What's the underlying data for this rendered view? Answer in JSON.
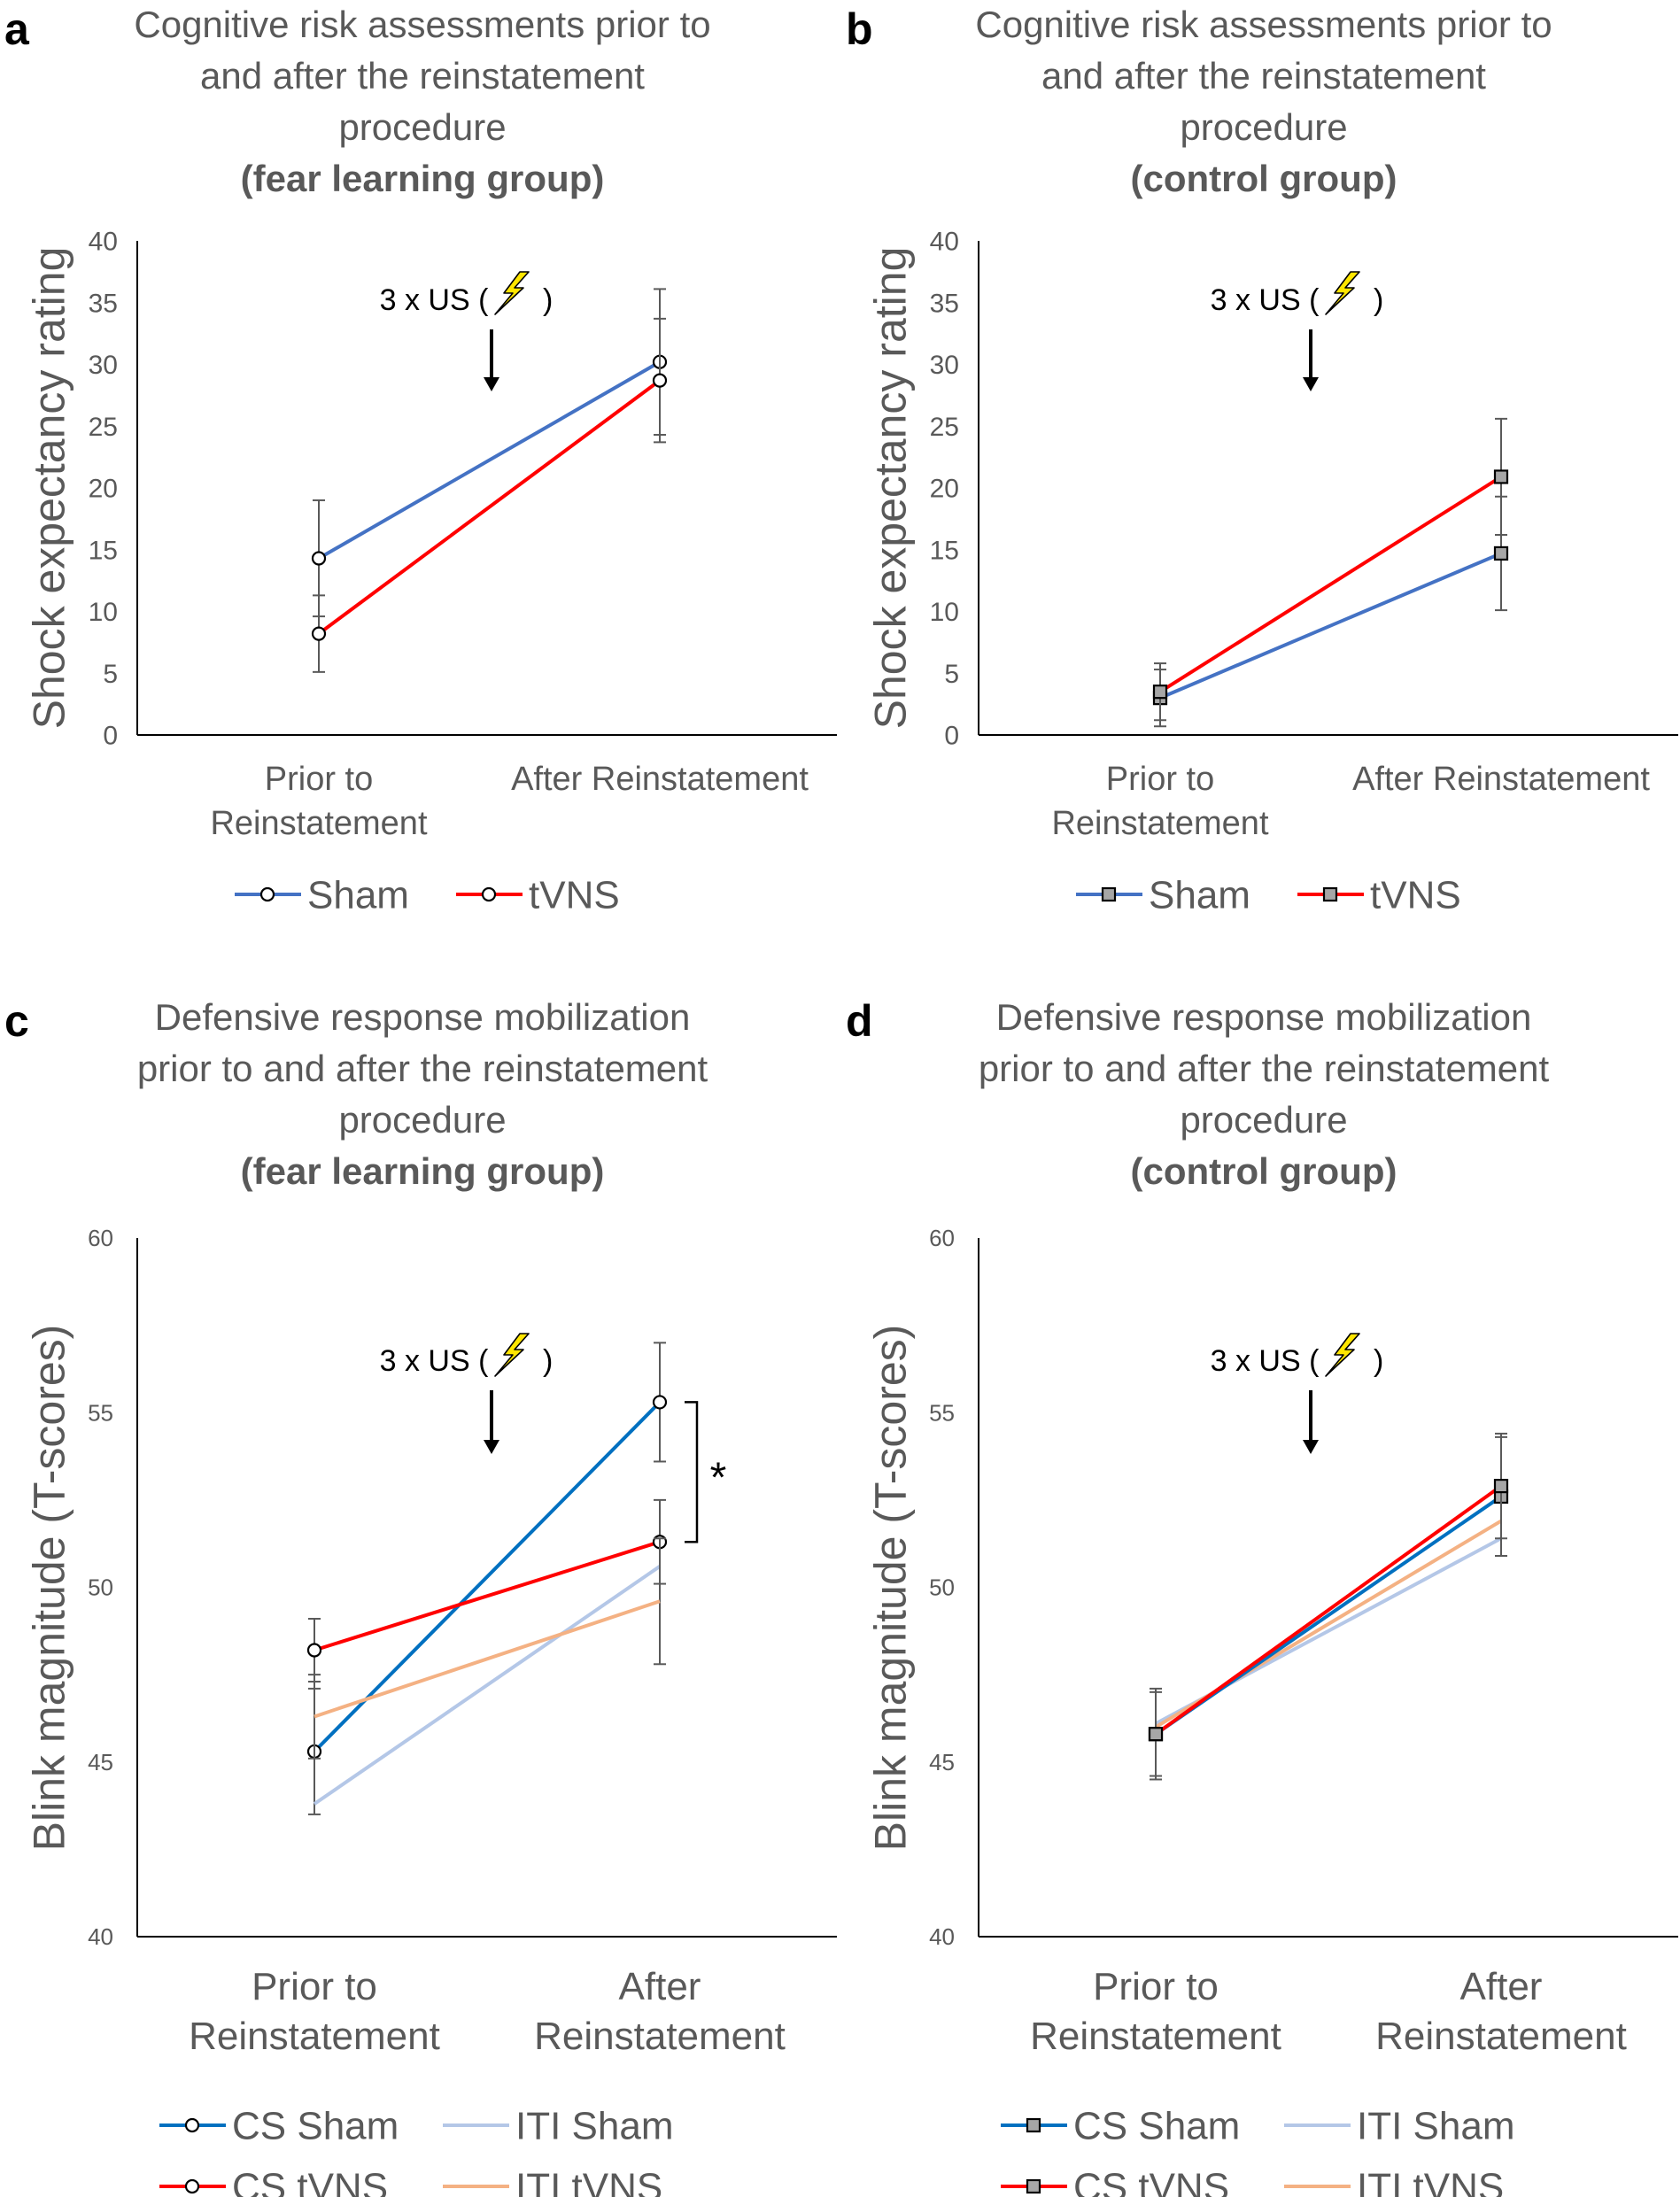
{
  "chart_data": [
    {
      "panel": "a",
      "type": "line",
      "title_lines": [
        "Cognitive risk assessments prior to",
        "and after the reinstatement",
        "procedure"
      ],
      "title_bold": "(fear learning group)",
      "ylabel": "Shock expectancy rating",
      "ylim": [
        0,
        40
      ],
      "yticks": [
        "0",
        "5",
        "10",
        "15",
        "20",
        "25",
        "30",
        "35",
        "40"
      ],
      "categories": [
        [
          "Prior to",
          "Reinstatement"
        ],
        [
          "After Reinstatement"
        ]
      ],
      "annotation": "3 x US (",
      "annotation_close": ")",
      "marker": "circle",
      "series": [
        {
          "name": "Sham",
          "color": "#4472c4",
          "values": [
            14.3,
            30.2
          ],
          "err": [
            4.7,
            5.9
          ]
        },
        {
          "name": "tVNS",
          "color": "#ff0000",
          "values": [
            8.2,
            28.7
          ],
          "err": [
            3.1,
            5.0
          ]
        }
      ],
      "legend": [
        {
          "name": "Sham",
          "color": "#4472c4",
          "marker": "circle"
        },
        {
          "name": "tVNS",
          "color": "#ff0000",
          "marker": "circle"
        }
      ]
    },
    {
      "panel": "b",
      "type": "line",
      "title_lines": [
        "Cognitive risk assessments prior to",
        "and after the reinstatement",
        "procedure"
      ],
      "title_bold": "(control group)",
      "ylabel": "Shock expectancy rating",
      "ylim": [
        0,
        40
      ],
      "yticks": [
        "0",
        "5",
        "10",
        "15",
        "20",
        "25",
        "30",
        "35",
        "40"
      ],
      "categories": [
        [
          "Prior to",
          "Reinstatement"
        ],
        [
          "After Reinstatement"
        ]
      ],
      "annotation": "3 x US (",
      "annotation_close": ")",
      "marker": "square",
      "series": [
        {
          "name": "Sham",
          "color": "#4472c4",
          "values": [
            3.0,
            14.7
          ],
          "err": [
            2.3,
            4.6
          ]
        },
        {
          "name": "tVNS",
          "color": "#ff0000",
          "values": [
            3.5,
            20.9
          ],
          "err": [
            2.3,
            4.7
          ]
        }
      ],
      "legend": [
        {
          "name": "Sham",
          "color": "#4472c4",
          "marker": "square"
        },
        {
          "name": "tVNS",
          "color": "#ff0000",
          "marker": "square"
        }
      ]
    },
    {
      "panel": "c",
      "type": "line",
      "title_lines": [
        "Defensive response mobilization",
        "prior to and after the reinstatement",
        "procedure"
      ],
      "title_bold": "(fear learning group)",
      "ylabel": "Blink magnitude (T-scores)",
      "ylim": [
        40,
        60
      ],
      "yticks": [
        "40",
        "45",
        "50",
        "55",
        "60"
      ],
      "categories": [
        [
          "Prior to",
          "Reinstatement"
        ],
        [
          "After",
          "Reinstatement"
        ]
      ],
      "annotation": "3 x US (",
      "annotation_close": ")",
      "significance": "*",
      "marker": "circle",
      "series": [
        {
          "name": "CS Sham",
          "color": "#0070c0",
          "values": [
            45.3,
            55.3
          ],
          "err": [
            1.8,
            1.7
          ],
          "marker": "circle"
        },
        {
          "name": "ITI Sham",
          "color": "#b4c7e7",
          "values": [
            43.8,
            50.6
          ],
          "err": [
            0.0,
            0.0
          ],
          "marker": "none"
        },
        {
          "name": "CS tVNS",
          "color": "#ff0000",
          "values": [
            48.2,
            51.3
          ],
          "err": [
            0.9,
            1.2
          ],
          "marker": "circle"
        },
        {
          "name": "ITI tVNS",
          "color": "#f4b183",
          "values": [
            46.3,
            49.6
          ],
          "err": [
            1.2,
            1.8
          ],
          "marker": "none"
        }
      ],
      "legend": [
        {
          "name": "CS Sham",
          "color": "#0070c0",
          "marker": "circle"
        },
        {
          "name": "ITI Sham",
          "color": "#b4c7e7",
          "marker": "none"
        },
        {
          "name": "CS tVNS",
          "color": "#ff0000",
          "marker": "circle"
        },
        {
          "name": "ITI tVNS",
          "color": "#f4b183",
          "marker": "none"
        }
      ]
    },
    {
      "panel": "d",
      "type": "line",
      "title_lines": [
        "Defensive response mobilization",
        "prior to and after the reinstatement",
        "procedure"
      ],
      "title_bold": "(control group)",
      "ylabel": "Blink magnitude (T-scores)",
      "ylim": [
        40,
        60
      ],
      "yticks": [
        "40",
        "45",
        "50",
        "55",
        "60"
      ],
      "categories": [
        [
          "Prior to",
          "Reinstatement"
        ],
        [
          "After",
          "Reinstatement"
        ]
      ],
      "annotation": "3 x US (",
      "annotation_close": ")",
      "marker": "square",
      "series": [
        {
          "name": "ITI Sham",
          "color": "#b4c7e7",
          "values": [
            46.1,
            51.4
          ],
          "err": [
            0.0,
            0.0
          ],
          "marker": "none"
        },
        {
          "name": "ITI tVNS",
          "color": "#f4b183",
          "values": [
            46.0,
            51.9
          ],
          "err": [
            0.0,
            0.0
          ],
          "marker": "none"
        },
        {
          "name": "CS Sham",
          "color": "#0070c0",
          "values": [
            45.8,
            52.6
          ],
          "err": [
            1.3,
            1.7
          ],
          "marker": "square"
        },
        {
          "name": "CS tVNS",
          "color": "#ff0000",
          "values": [
            45.8,
            52.9
          ],
          "err": [
            1.2,
            1.5
          ],
          "marker": "square"
        }
      ],
      "legend": [
        {
          "name": "CS Sham",
          "color": "#0070c0",
          "marker": "square"
        },
        {
          "name": "ITI Sham",
          "color": "#b4c7e7",
          "marker": "none"
        },
        {
          "name": "CS tVNS",
          "color": "#ff0000",
          "marker": "square"
        },
        {
          "name": "ITI tVNS",
          "color": "#f4b183",
          "marker": "none"
        }
      ]
    }
  ]
}
